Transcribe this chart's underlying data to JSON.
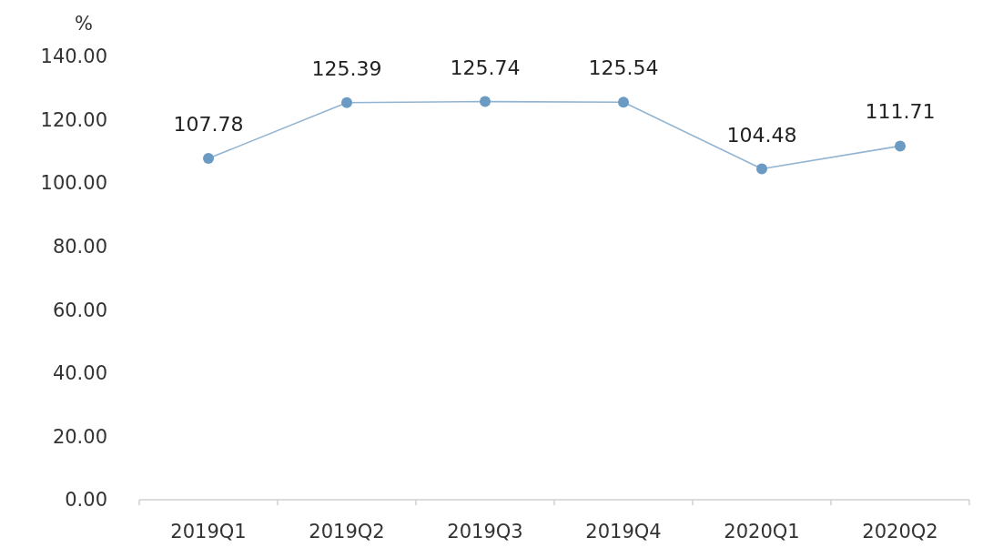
{
  "chart_data": {
    "type": "line",
    "ylabel": "%",
    "categories": [
      "2019Q1",
      "2019Q2",
      "2019Q3",
      "2019Q4",
      "2020Q1",
      "2020Q2"
    ],
    "series": [
      {
        "color": "#6b9bc3",
        "values": [
          107.78,
          125.39,
          125.74,
          125.54,
          104.48,
          111.71
        ]
      }
    ],
    "ylim": [
      0,
      140
    ],
    "yticks": [
      {
        "value": 0,
        "label": "0.00"
      },
      {
        "value": 20,
        "label": "20.00"
      },
      {
        "value": 40,
        "label": "40.00"
      },
      {
        "value": 60,
        "label": "60.00"
      },
      {
        "value": 80,
        "label": "80.00"
      },
      {
        "value": 100,
        "label": "100.00"
      },
      {
        "value": 120,
        "label": "120.00"
      },
      {
        "value": 140,
        "label": "140.00"
      }
    ],
    "grid": false,
    "marker": "circle",
    "line_style": "solid",
    "data_labels": true
  }
}
